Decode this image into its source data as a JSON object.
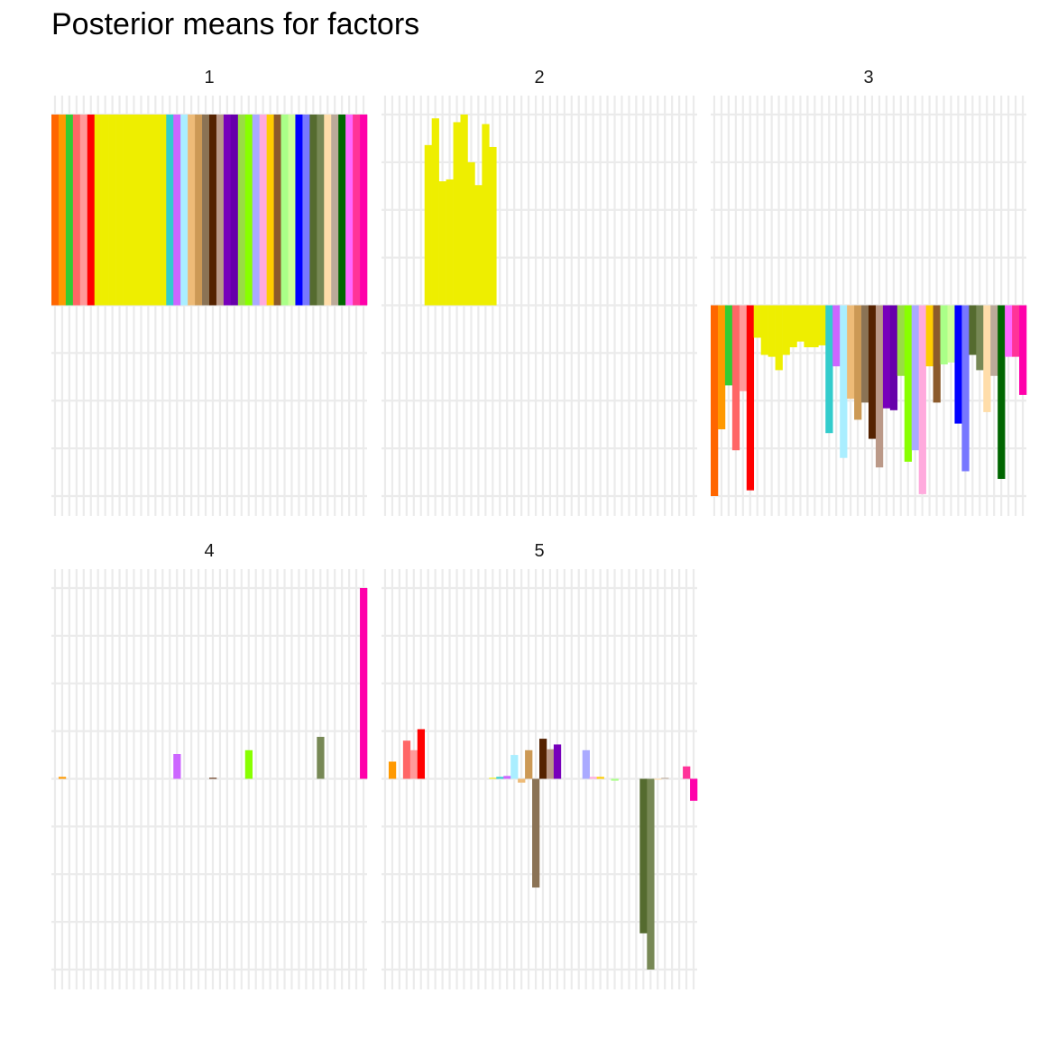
{
  "chart_data": {
    "type": "bar",
    "title": "Posterior means for factors",
    "xlabel": "",
    "ylabel": "",
    "grid": true,
    "legend": "none",
    "note": "faceted bar chart; 5 facets labelled 1-5; no axis tick labels shown; values in relative units with facet y-range normalized to [-1, 1]",
    "n_bars": 44,
    "bar_colors": [
      "#FF6600",
      "#FF9900",
      "#33CC33",
      "#FF6666",
      "#FF9999",
      "#FF0000",
      "#EEEE00",
      "#EEEE00",
      "#EEEE00",
      "#EEEE00",
      "#EEEE00",
      "#EEEE00",
      "#EEEE00",
      "#EEEE00",
      "#EEEE00",
      "#EEEE00",
      "#33CCCC",
      "#CC66FF",
      "#AAEEFF",
      "#EEBB77",
      "#CC9955",
      "#8B7355",
      "#552200",
      "#BB9988",
      "#7700BB",
      "#6600AA",
      "#99DD44",
      "#88FF00",
      "#AAAAFF",
      "#FFAADD",
      "#FFCC00",
      "#8B5A2B",
      "#AAFF88",
      "#CCFF99",
      "#0000FF",
      "#7777FF",
      "#556B2F",
      "#778855",
      "#FFDDAA",
      "#BBAA99",
      "#006600",
      "#FF66FF",
      "#FF3399",
      "#FF00AA"
    ],
    "ylim": [
      -1,
      1
    ],
    "facets": [
      {
        "label": "1",
        "values": [
          1,
          1,
          1,
          1,
          1,
          1,
          1,
          1,
          1,
          1,
          1,
          1,
          1,
          1,
          1,
          1,
          1,
          1,
          1,
          1,
          1,
          1,
          1,
          1,
          1,
          1,
          1,
          1,
          1,
          1,
          1,
          1,
          1,
          1,
          1,
          1,
          1,
          1,
          1,
          1,
          1,
          1,
          1,
          1
        ]
      },
      {
        "label": "2",
        "values": [
          0,
          0,
          0,
          0,
          0,
          0,
          0.84,
          0.98,
          0.65,
          0.66,
          0.96,
          1.0,
          0.75,
          0.63,
          0.95,
          0.83,
          0,
          0,
          0,
          0,
          0,
          0,
          0,
          0,
          0,
          0,
          0,
          0,
          0,
          0,
          0,
          0,
          0,
          0,
          0,
          0,
          0,
          0,
          0,
          0,
          0,
          0,
          0,
          0
        ]
      },
      {
        "label": "3",
        "values": [
          -1.0,
          -0.65,
          -0.42,
          -0.76,
          -0.45,
          -0.97,
          -0.17,
          -0.26,
          -0.27,
          -0.34,
          -0.26,
          -0.22,
          -0.19,
          -0.22,
          -0.22,
          -0.21,
          -0.67,
          -0.32,
          -0.8,
          -0.49,
          -0.6,
          -0.51,
          -0.7,
          -0.85,
          -0.54,
          -0.55,
          -0.37,
          -0.82,
          -0.76,
          -0.99,
          -0.32,
          -0.51,
          -0.31,
          -0.3,
          -0.62,
          -0.87,
          -0.26,
          -0.34,
          -0.56,
          -0.37,
          -0.91,
          -0.27,
          -0.27,
          -0.47
        ]
      },
      {
        "label": "4",
        "values": [
          0,
          0.01,
          0,
          0,
          0,
          0,
          0,
          0,
          0,
          0,
          0,
          0,
          0,
          0,
          0,
          0,
          0,
          0.13,
          0,
          0,
          0,
          0,
          0.005,
          0,
          0,
          0,
          0,
          0.15,
          0,
          0,
          0,
          0,
          0,
          0,
          0,
          0,
          0,
          0.22,
          0,
          0,
          0,
          0,
          0,
          1.0
        ]
      },
      {
        "label": "5",
        "values": [
          0,
          0.09,
          0,
          0.2,
          0.15,
          0.26,
          0,
          0,
          0,
          0,
          0,
          0,
          0,
          0,
          0,
          0.005,
          0.01,
          0.015,
          0.125,
          -0.02,
          0.15,
          -0.57,
          0.21,
          0.155,
          0.18,
          0,
          0,
          0,
          0.15,
          0.01,
          0.01,
          0,
          -0.01,
          0,
          0,
          0,
          -0.81,
          -1.0,
          -0.005,
          0.005,
          0,
          0,
          0.065,
          -0.115
        ]
      }
    ]
  }
}
